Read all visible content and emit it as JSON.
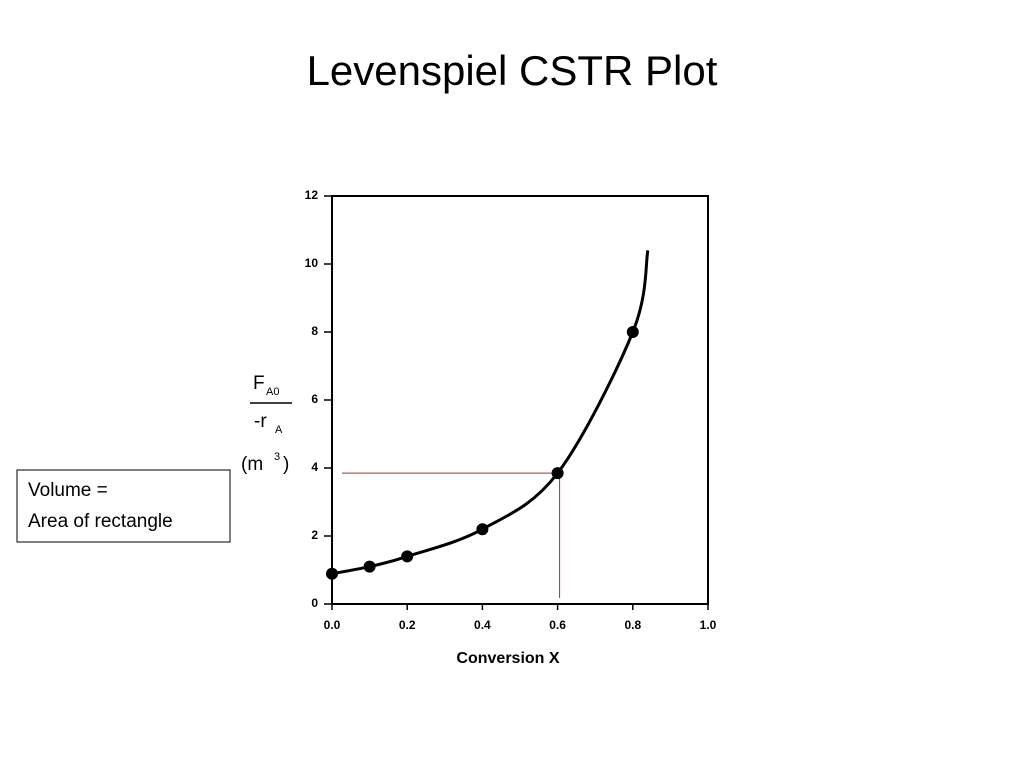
{
  "slide_title": "Levenspiel CSTR Plot",
  "annotation": [
    "Volume =",
    "Area of rectangle"
  ],
  "chart_data": {
    "type": "scatter",
    "xlabel": "Conversion X",
    "ylabel": {
      "numerator": [
        "F",
        "A0"
      ],
      "denominator": [
        "-r",
        "A"
      ],
      "unit": [
        "(m",
        "3",
        ")"
      ]
    },
    "xlim": [
      0,
      1
    ],
    "ylim": [
      0,
      12
    ],
    "xticks": [
      {
        "value": 0,
        "label": "0.0"
      },
      0.2,
      0.4,
      0.6,
      0.8,
      {
        "value": 1,
        "label": "1.0"
      }
    ],
    "yticks": [
      0,
      2,
      4,
      6,
      8,
      10,
      12
    ],
    "series": [
      {
        "color": "#000000",
        "x": [
          0,
          0.1,
          0.2,
          0.4,
          0.6,
          0.8
        ],
        "values": [
          0.89,
          1.1,
          1.4,
          2.2,
          3.85,
          8.0
        ]
      },
      {
        "color": "#000000",
        "style": "curve",
        "x": [
          0,
          0.1,
          0.2,
          0.4,
          0.6,
          0.8,
          0.84
        ],
        "values": [
          0.89,
          1.1,
          1.4,
          2.2,
          3.85,
          8.0,
          10.4
        ]
      }
    ],
    "rectangle_color": "#a0302a"
  }
}
